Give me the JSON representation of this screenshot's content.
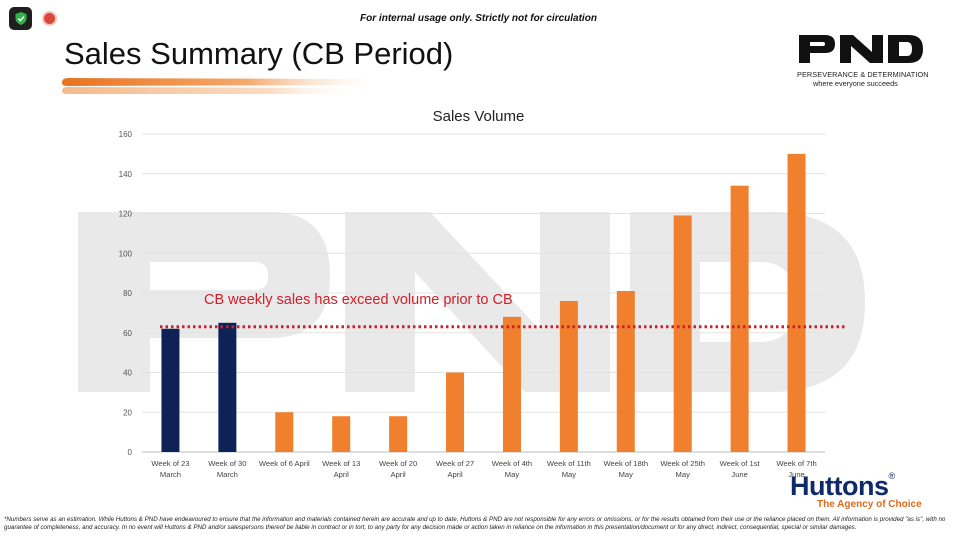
{
  "header": {
    "notice": "For internal usage only. Strictly not for circulation",
    "title": "Sales Summary (CB Period)"
  },
  "logo": {
    "name": "PND",
    "tagline": "PERSEVERANCE & DETERMINATION",
    "subtagline": "where everyone succeeds"
  },
  "icons": {
    "shield": "shield-check-icon",
    "record": "record-icon"
  },
  "chart_data": {
    "type": "bar",
    "title": "Sales Volume",
    "categories": [
      [
        "Week of 23",
        "March"
      ],
      [
        "Week of 30",
        "March"
      ],
      [
        "Week of 6 April"
      ],
      [
        "Week of 13",
        "April"
      ],
      [
        "Week of 20",
        "April"
      ],
      [
        "Week of 27",
        "April"
      ],
      [
        "Week of 4th",
        "May"
      ],
      [
        "Week of 11th",
        "May"
      ],
      [
        "Week of 18th",
        "May"
      ],
      [
        "Week of 25th",
        "May"
      ],
      [
        "Week of 1st",
        "June"
      ],
      [
        "Week of 7th",
        "June"
      ]
    ],
    "values": [
      62,
      65,
      20,
      18,
      18,
      40,
      68,
      76,
      81,
      119,
      134,
      150
    ],
    "bar_colors": [
      "#0f2257",
      "#0f2257",
      "#f07f2e",
      "#f07f2e",
      "#f07f2e",
      "#f07f2e",
      "#f07f2e",
      "#f07f2e",
      "#f07f2e",
      "#f07f2e",
      "#f07f2e",
      "#f07f2e"
    ],
    "yticks": [
      0,
      20,
      40,
      60,
      80,
      100,
      120,
      140,
      160
    ],
    "ylim": [
      0,
      160
    ],
    "grid": true,
    "reference_line": {
      "value": 63,
      "color": "#d0202a",
      "style": "dotted"
    },
    "annotation": "CB weekly sales has exceed volume prior to CB",
    "annotation_color": "#d0202a",
    "watermark": "PND"
  },
  "brand": {
    "name": "Huttons",
    "registered": "®",
    "slogan": "The Agency of Choice",
    "colors": {
      "navy": "#0d2a6b",
      "orange": "#e06a1a"
    }
  },
  "footnote": "*Numbers serve as an estimation. While Huttons & PND have endeavoured to ensure that the information and materials contained herein are accurate and up to date, Huttons & PND are not responsible for any errors or omissions, or for the results obtained from their use or the reliance placed on them. All information is provided \"as is\", with no guarantee of completeness, and accuracy. In no event will Huttons & PND and/or salespersons thereof be liable in contract or in tort, to any party for any decision made or action taken in reliance on the information in this presentation/document or for any direct, indirect, consequential, special or similar damages."
}
